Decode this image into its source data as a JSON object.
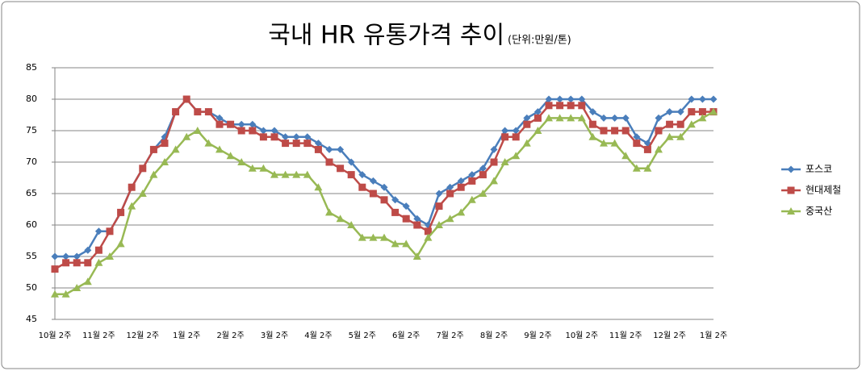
{
  "chart_data": {
    "type": "line",
    "title": "국내 HR 유통가격 추이",
    "subtitle": "(단위:만원/톤)",
    "categories": [
      "10월 2주",
      null,
      null,
      null,
      "11월 2주",
      null,
      null,
      null,
      "12월 2주",
      null,
      null,
      null,
      "1월 2주",
      null,
      null,
      null,
      "2월 2주",
      null,
      null,
      null,
      "3월 2주",
      null,
      null,
      null,
      "4월 2주",
      null,
      null,
      null,
      "5월 2주",
      null,
      null,
      null,
      "6월 2주",
      null,
      null,
      null,
      "7월 2주",
      null,
      null,
      null,
      "8월 2주",
      null,
      null,
      null,
      "9월 2주",
      null,
      null,
      null,
      "10월 2주",
      null,
      null,
      null,
      "11월 2주",
      null,
      null,
      null,
      "12월 2주",
      null,
      null,
      null,
      "1월 2주"
    ],
    "series": [
      {
        "name": "포스코",
        "color": "#4a7ebb",
        "marker": "diamond",
        "values": [
          55,
          55,
          55,
          56,
          59,
          59,
          62,
          66,
          69,
          72,
          74,
          78,
          80,
          78,
          78,
          77,
          76,
          76,
          76,
          75,
          75,
          74,
          74,
          74,
          73,
          72,
          72,
          70,
          68,
          67,
          66,
          64,
          63,
          61,
          60,
          65,
          66,
          67,
          68,
          69,
          72,
          75,
          75,
          77,
          78,
          80,
          80,
          80,
          80,
          78,
          77,
          77,
          77,
          74,
          73,
          77,
          78,
          78,
          80,
          80,
          80
        ]
      },
      {
        "name": "현대제철",
        "color": "#be4b48",
        "marker": "square",
        "values": [
          53,
          54,
          54,
          54,
          56,
          59,
          62,
          66,
          69,
          72,
          73,
          78,
          80,
          78,
          78,
          76,
          76,
          75,
          75,
          74,
          74,
          73,
          73,
          73,
          72,
          70,
          69,
          68,
          66,
          65,
          64,
          62,
          61,
          60,
          59,
          63,
          65,
          66,
          67,
          68,
          70,
          74,
          74,
          76,
          77,
          79,
          79,
          79,
          79,
          76,
          75,
          75,
          75,
          73,
          72,
          75,
          76,
          76,
          78,
          78,
          78
        ]
      },
      {
        "name": "중국산",
        "color": "#98b954",
        "marker": "triangle",
        "values": [
          49,
          49,
          50,
          51,
          54,
          55,
          57,
          63,
          65,
          68,
          70,
          72,
          74,
          75,
          73,
          72,
          71,
          70,
          69,
          69,
          68,
          68,
          68,
          68,
          66,
          62,
          61,
          60,
          58,
          58,
          58,
          57,
          57,
          55,
          58,
          60,
          61,
          62,
          64,
          65,
          67,
          70,
          71,
          73,
          75,
          77,
          77,
          77,
          77,
          74,
          73,
          73,
          71,
          69,
          69,
          72,
          74,
          74,
          76,
          77,
          78
        ]
      }
    ],
    "ylim": [
      45,
      85
    ],
    "yticks": [
      45,
      50,
      55,
      60,
      65,
      70,
      75,
      80,
      85
    ],
    "grid": true,
    "legend": "right"
  }
}
